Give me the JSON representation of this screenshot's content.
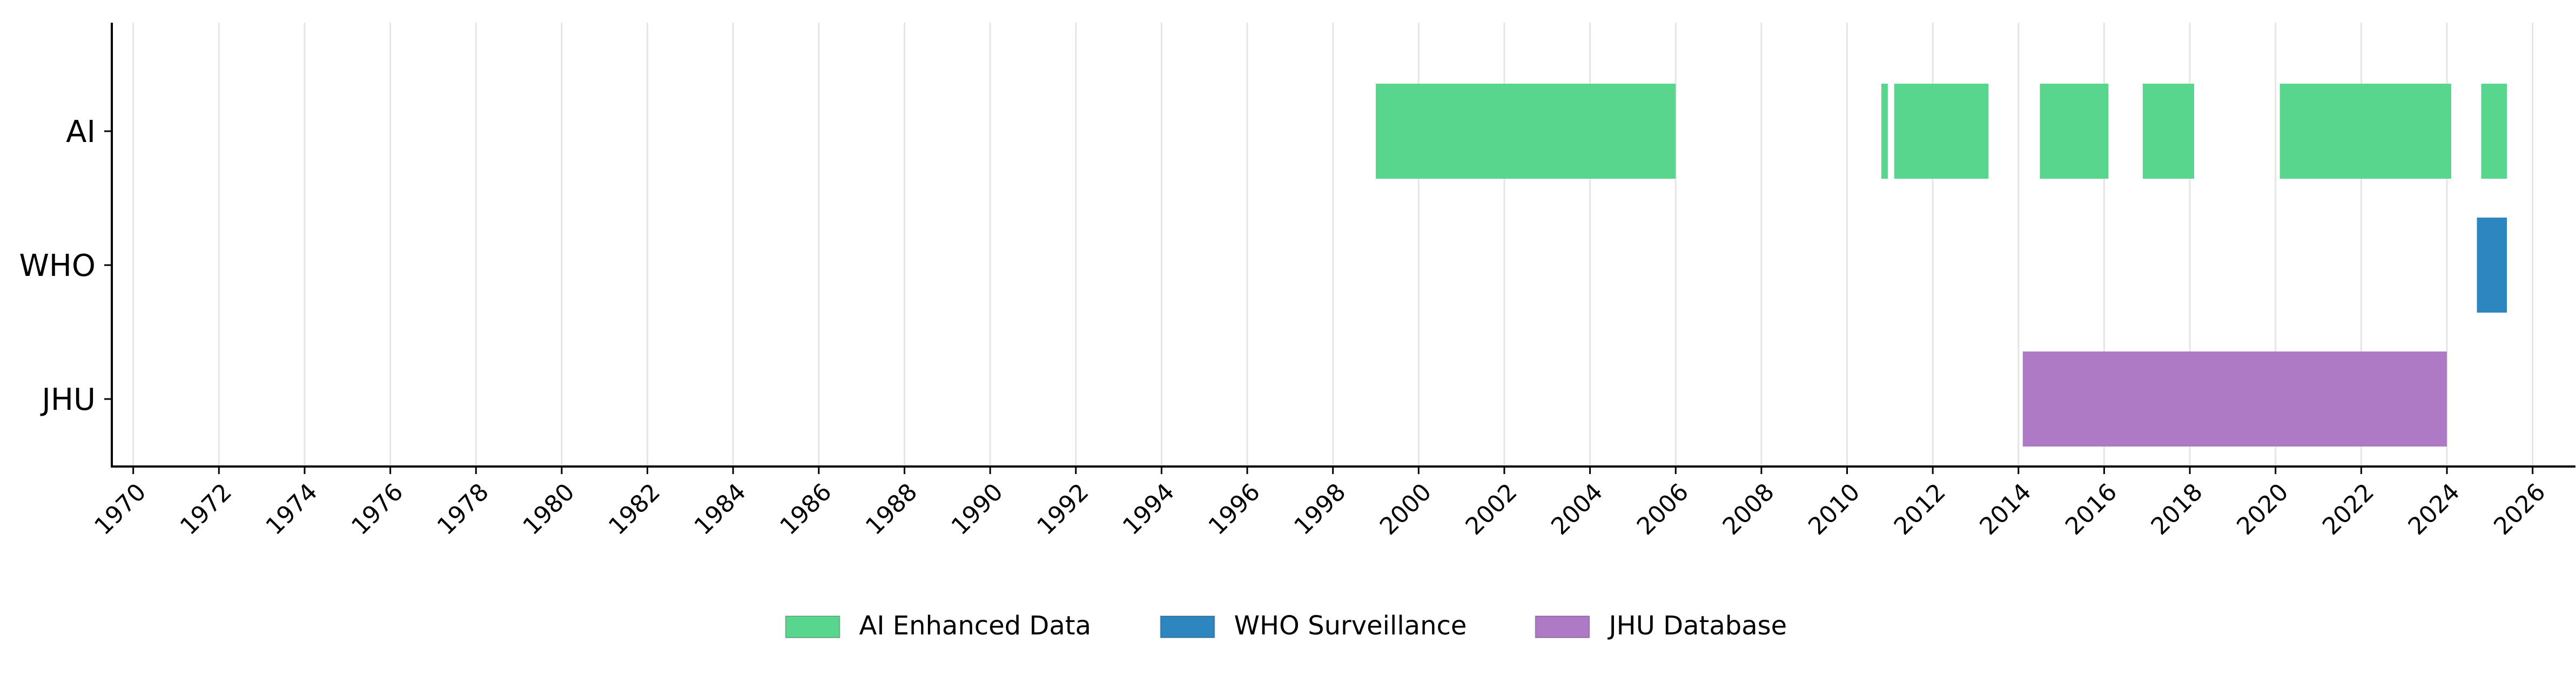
{
  "chart_data": {
    "type": "timeline",
    "xlim": [
      1969.5,
      2027
    ],
    "x_ticks": [
      1970,
      1972,
      1974,
      1976,
      1978,
      1980,
      1982,
      1984,
      1986,
      1988,
      1990,
      1992,
      1994,
      1996,
      1998,
      2000,
      2002,
      2004,
      2006,
      2008,
      2010,
      2012,
      2014,
      2016,
      2018,
      2020,
      2022,
      2024,
      2026
    ],
    "grid": "vertical",
    "categories": [
      "AI",
      "WHO",
      "JHU"
    ],
    "series": [
      {
        "name": "AI Enhanced Data",
        "color": "#58d68d",
        "row": "AI",
        "intervals": [
          [
            1999.0,
            2006.0
          ],
          [
            2010.8,
            2010.95
          ],
          [
            2011.1,
            2013.3
          ],
          [
            2014.5,
            2016.1
          ],
          [
            2016.9,
            2018.1
          ],
          [
            2020.1,
            2024.1
          ],
          [
            2024.8,
            2025.4
          ]
        ]
      },
      {
        "name": "WHO Surveillance",
        "color": "#2e86c1",
        "row": "WHO",
        "intervals": [
          [
            2024.7,
            2025.4
          ]
        ]
      },
      {
        "name": "JHU Database",
        "color": "#af7ac5",
        "row": "JHU",
        "intervals": [
          [
            2014.1,
            2024.0
          ]
        ]
      }
    ],
    "legend_position": "bottom-center"
  }
}
